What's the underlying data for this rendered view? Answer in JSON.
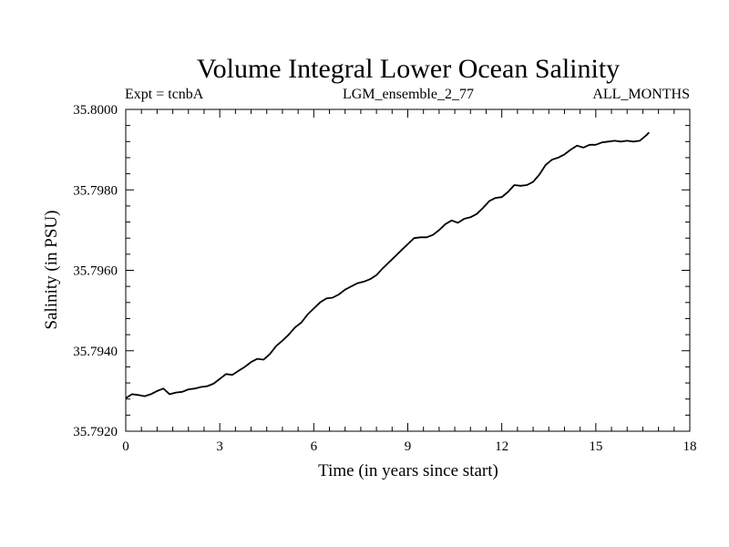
{
  "chart_data": {
    "type": "line",
    "title": "Volume Integral Lower Ocean Salinity",
    "subtitle_left": "Expt = tcnbA",
    "subtitle_center": "LGM_ensemble_2_77",
    "subtitle_right": "ALL_MONTHS",
    "xlabel": "Time (in years since start)",
    "ylabel": "Salinity (in PSU)",
    "xlim": [
      0,
      18
    ],
    "ylim": [
      35.792,
      35.8
    ],
    "x_ticks": [
      0,
      3,
      6,
      9,
      12,
      15,
      18
    ],
    "x_tick_labels": [
      "0",
      "3",
      "6",
      "9",
      "12",
      "15",
      "18"
    ],
    "x_minor_step": 0.5,
    "y_ticks": [
      35.792,
      35.794,
      35.796,
      35.798,
      35.8
    ],
    "y_tick_labels": [
      "35.7920",
      "35.7940",
      "35.7960",
      "35.7980",
      "35.8000"
    ],
    "y_minor_step": 0.0004,
    "grid": false,
    "series": [
      {
        "name": "salinity",
        "color": "#000000",
        "x": [
          0.0,
          0.2,
          0.4,
          0.6,
          0.8,
          1.0,
          1.2,
          1.4,
          1.6,
          1.8,
          2.0,
          2.2,
          2.4,
          2.6,
          2.8,
          3.0,
          3.2,
          3.4,
          3.6,
          3.8,
          4.0,
          4.2,
          4.4,
          4.6,
          4.8,
          5.0,
          5.2,
          5.4,
          5.6,
          5.8,
          6.0,
          6.2,
          6.4,
          6.6,
          6.8,
          7.0,
          7.2,
          7.4,
          7.6,
          7.8,
          8.0,
          8.2,
          8.4,
          8.6,
          8.8,
          9.0,
          9.2,
          9.4,
          9.6,
          9.8,
          10.0,
          10.2,
          10.4,
          10.6,
          10.8,
          11.0,
          11.2,
          11.4,
          11.6,
          11.8,
          12.0,
          12.2,
          12.4,
          12.6,
          12.8,
          13.0,
          13.2,
          13.4,
          13.6,
          13.8,
          14.0,
          14.2,
          14.4,
          14.6,
          14.8,
          15.0,
          15.2,
          15.4,
          15.6,
          15.8,
          16.0,
          16.2,
          16.4,
          16.6,
          16.7
        ],
        "y": [
          35.79282,
          35.79292,
          35.7929,
          35.79287,
          35.79292,
          35.793,
          35.79306,
          35.79292,
          35.79296,
          35.79298,
          35.79304,
          35.79306,
          35.7931,
          35.79312,
          35.79318,
          35.7933,
          35.79342,
          35.7934,
          35.7935,
          35.7936,
          35.79372,
          35.7938,
          35.79378,
          35.79392,
          35.79412,
          35.79425,
          35.7944,
          35.79458,
          35.7947,
          35.7949,
          35.79505,
          35.7952,
          35.7953,
          35.79532,
          35.7954,
          35.79552,
          35.7956,
          35.79568,
          35.79572,
          35.79578,
          35.79588,
          35.79605,
          35.7962,
          35.79635,
          35.7965,
          35.79665,
          35.7968,
          35.79682,
          35.79682,
          35.79688,
          35.797,
          35.79715,
          35.79724,
          35.79718,
          35.79728,
          35.79732,
          35.7974,
          35.79755,
          35.79772,
          35.7978,
          35.79782,
          35.79795,
          35.79812,
          35.7981,
          35.79812,
          35.7982,
          35.79838,
          35.79862,
          35.79875,
          35.7988,
          35.79888,
          35.799,
          35.7991,
          35.79905,
          35.79912,
          35.79912,
          35.79918,
          35.7992,
          35.79922,
          35.7992,
          35.79922,
          35.7992,
          35.79922,
          35.79935,
          35.79943
        ]
      }
    ]
  }
}
